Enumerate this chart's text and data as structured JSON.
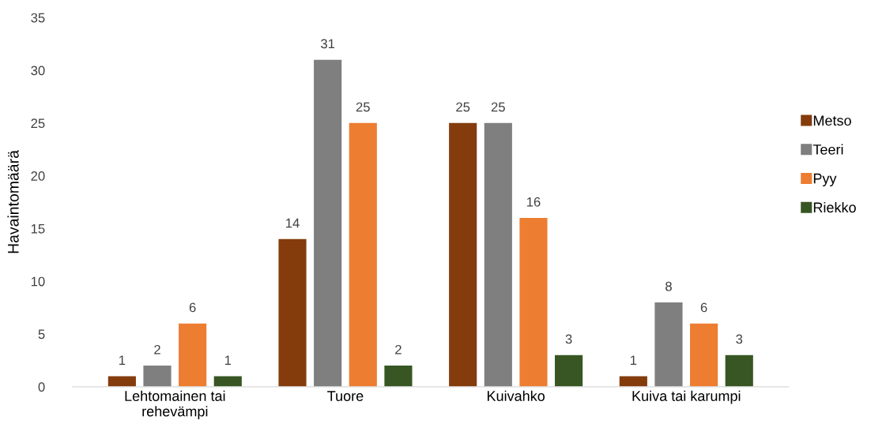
{
  "chart_data": {
    "type": "bar",
    "ylabel": "Havaintomäärä",
    "categories": [
      "Lehtomainen tai\nrehevämpi",
      "Tuore",
      "Kuivahko",
      "Kuiva tai karumpi"
    ],
    "series": [
      {
        "name": "Metso",
        "color": "#843c0c",
        "values": [
          1,
          14,
          25,
          1
        ]
      },
      {
        "name": "Teeri",
        "color": "#7f7f7f",
        "values": [
          2,
          31,
          25,
          8
        ]
      },
      {
        "name": "Pyy",
        "color": "#ed7d31",
        "values": [
          6,
          25,
          16,
          6
        ]
      },
      {
        "name": "Riekko",
        "color": "#375623",
        "values": [
          1,
          2,
          3,
          3
        ]
      }
    ],
    "ylim": [
      0,
      35
    ],
    "yticks": [
      0,
      5,
      10,
      15,
      20,
      25,
      30,
      35
    ],
    "grid": false,
    "legend": "right",
    "data_labels": true
  }
}
